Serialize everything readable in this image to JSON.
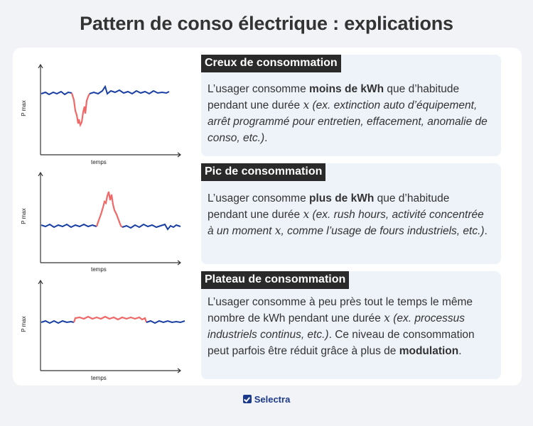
{
  "title": "Pattern de conso électrique : explications",
  "colors": {
    "normal": "#1a3fa3",
    "highlight": "#f06868",
    "heading_bg": "#2a2a2a",
    "panel_bg": "#eef3fa"
  },
  "sections": [
    {
      "heading": "Creux de consommation",
      "ylabel": "P max",
      "xlabel": "temps",
      "pattern": "dip",
      "desc": {
        "pre": "L’usager consomme ",
        "bold": "moins de kWh",
        "mid": " que d’habitude pendant une durée ",
        "var": "x",
        "italic": " (ex. extinction auto d’équipement, arrêt programmé pour entretien, effacement, anomalie de conso, etc.)",
        "end": "."
      }
    },
    {
      "heading": "Pic de consommation",
      "ylabel": "P max",
      "xlabel": "temps",
      "pattern": "peak",
      "desc": {
        "pre": "L’usager consomme ",
        "bold": "plus de kWh",
        "mid": " que d’habitude pendant une durée ",
        "var": "x",
        "italic": " (ex. rush hours, activité concentrée à un moment ",
        "var2": "x",
        "italic2": ", comme l’usage de fours industriels, etc.)",
        "end": "."
      }
    },
    {
      "heading": "Plateau de consommation",
      "ylabel": "P max",
      "xlabel": "temps",
      "pattern": "plateau",
      "desc": {
        "pre": "L’usager consomme à peu près tout le temps le même nombre de kWh pendant une durée ",
        "var": "x",
        "italic": " (ex. processus industriels continus, etc.)",
        "mid": ". Ce niveau de consommation peut parfois être réduit grâce à plus de ",
        "bold": "modulation",
        "end": "."
      }
    }
  ],
  "footer": {
    "brand": "Selectra"
  }
}
